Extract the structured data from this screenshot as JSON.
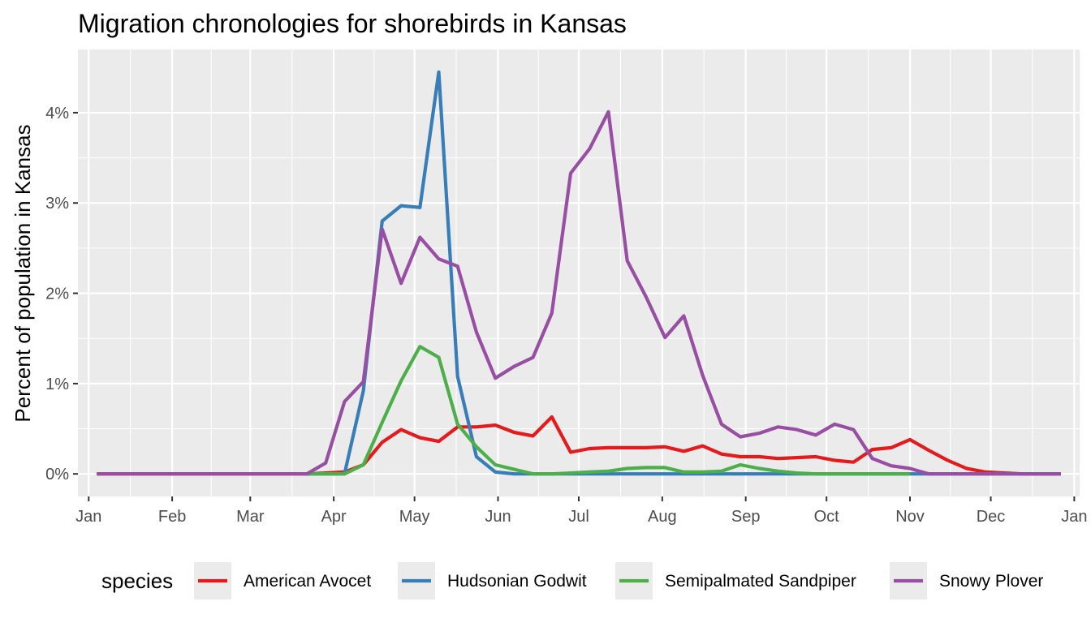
{
  "chart_data": {
    "type": "line",
    "title": "Migration chronologies for shorebirds in Kansas",
    "xlabel": "",
    "ylabel": "Percent of population in Kansas",
    "x_tick_labels": [
      "Jan",
      "Feb",
      "Mar",
      "Apr",
      "May",
      "Jun",
      "Jul",
      "Aug",
      "Sep",
      "Oct",
      "Nov",
      "Dec",
      "Jan"
    ],
    "y_ticks": [
      0,
      1,
      2,
      3,
      4
    ],
    "y_tick_labels": [
      "0%",
      "1%",
      "2%",
      "3%",
      "4%"
    ],
    "ylim": [
      -0.25,
      4.7
    ],
    "xlim": [
      "2019-12-28",
      "2021-01-03"
    ],
    "x_dates": [
      "2020-01-04",
      "2020-01-11",
      "2020-01-18",
      "2020-01-25",
      "2020-02-01",
      "2020-02-08",
      "2020-02-15",
      "2020-02-22",
      "2020-03-01",
      "2020-03-08",
      "2020-03-15",
      "2020-03-22",
      "2020-03-29",
      "2020-04-05",
      "2020-04-12",
      "2020-04-19",
      "2020-04-26",
      "2020-05-03",
      "2020-05-10",
      "2020-05-17",
      "2020-05-24",
      "2020-05-31",
      "2020-06-07",
      "2020-06-14",
      "2020-06-21",
      "2020-06-28",
      "2020-07-05",
      "2020-07-12",
      "2020-07-19",
      "2020-07-26",
      "2020-08-02",
      "2020-08-09",
      "2020-08-16",
      "2020-08-23",
      "2020-08-30",
      "2020-09-06",
      "2020-09-13",
      "2020-09-20",
      "2020-09-27",
      "2020-10-04",
      "2020-10-11",
      "2020-10-18",
      "2020-10-25",
      "2020-11-01",
      "2020-11-08",
      "2020-11-15",
      "2020-11-22",
      "2020-11-29",
      "2020-12-06",
      "2020-12-13",
      "2020-12-20",
      "2020-12-27"
    ],
    "series": [
      {
        "name": "American Avocet",
        "color": "#e41a1c",
        "start_index": 0,
        "values": [
          0,
          0,
          0,
          0,
          0,
          0,
          0,
          0,
          0,
          0,
          0,
          0,
          0.01,
          0.02,
          0.1,
          0.35,
          0.49,
          0.4,
          0.36,
          0.52,
          0.52,
          0.54,
          0.46,
          0.42,
          0.63,
          0.24,
          0.28,
          0.29,
          0.29,
          0.29,
          0.3,
          0.25,
          0.31,
          0.22,
          0.19,
          0.19,
          0.17,
          0.18,
          0.19,
          0.15,
          0.13,
          0.27,
          0.29,
          0.38,
          0.26,
          0.15,
          0.06,
          0.02,
          0.01,
          0,
          0,
          0
        ]
      },
      {
        "name": "Hudsonian Godwit",
        "color": "#377eb8",
        "start_index": 11,
        "values": [
          0,
          0,
          0,
          0.92,
          2.8,
          2.97,
          2.95,
          4.45,
          1.08,
          0.19,
          0.02,
          0,
          0,
          0,
          0,
          0,
          0,
          0,
          0,
          0,
          0,
          0,
          0,
          0,
          0,
          0,
          0,
          0,
          0,
          0,
          0,
          0,
          0,
          0,
          0,
          0,
          0,
          0,
          0,
          0,
          0
        ]
      },
      {
        "name": "Semipalmated Sandpiper",
        "color": "#4daf4a",
        "start_index": 11,
        "values": [
          0,
          0,
          0,
          0.1,
          0.57,
          1.03,
          1.41,
          1.29,
          0.55,
          0.3,
          0.1,
          0.05,
          0,
          0,
          0.01,
          0.02,
          0.03,
          0.06,
          0.07,
          0.07,
          0.02,
          0.02,
          0.03,
          0.1,
          0.06,
          0.03,
          0.01,
          0,
          0,
          0,
          0,
          0,
          0
        ]
      },
      {
        "name": "Snowy Plover",
        "color": "#984ea3",
        "start_index": 0,
        "values": [
          0,
          0,
          0,
          0,
          0,
          0,
          0,
          0,
          0,
          0,
          0,
          0,
          0.12,
          0.8,
          1.02,
          2.71,
          2.11,
          2.62,
          2.38,
          2.3,
          1.57,
          1.06,
          1.19,
          1.29,
          1.78,
          3.33,
          3.6,
          4.01,
          2.36,
          1.96,
          1.51,
          1.75,
          1.09,
          0.55,
          0.41,
          0.45,
          0.52,
          0.49,
          0.43,
          0.55,
          0.49,
          0.17,
          0.09,
          0.06,
          0,
          0,
          0,
          0,
          0,
          0,
          0,
          0
        ]
      }
    ],
    "grid": true,
    "legend": {
      "title": "species",
      "position": "bottom"
    }
  }
}
